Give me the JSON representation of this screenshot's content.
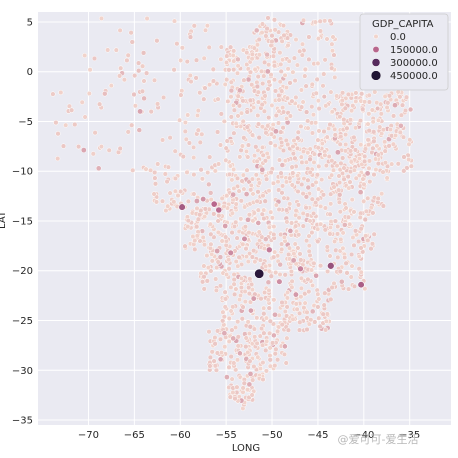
{
  "chart_data": {
    "type": "scatter",
    "title": "",
    "xlabel": "LONG",
    "ylabel": "LAT",
    "xlim": [
      -75.5,
      -30.5
    ],
    "ylim": [
      -35.5,
      6.0
    ],
    "xticks": [
      -70,
      -65,
      -60,
      -55,
      -50,
      -45,
      -40,
      -35
    ],
    "yticks": [
      5,
      0,
      -5,
      -10,
      -15,
      -20,
      -25,
      -30,
      -35
    ],
    "xtick_labels": [
      "−70",
      "−65",
      "−60",
      "−55",
      "−50",
      "−45",
      "−40",
      "−35"
    ],
    "ytick_labels": [
      "5",
      "0",
      "−5",
      "−10",
      "−15",
      "−20",
      "−25",
      "−30",
      "−35"
    ],
    "grid": true,
    "background_color": "#eaeaf2",
    "legend": {
      "title": "GDP_CAPITA",
      "placement": "top-right",
      "entries": [
        {
          "label": "0.0",
          "value": 0,
          "color": "#f2d4cc"
        },
        {
          "label": "150000.0",
          "value": 150000,
          "color": "#b8668c"
        },
        {
          "label": "300000.0",
          "value": 300000,
          "color": "#552a5c"
        },
        {
          "label": "450000.0",
          "value": 450000,
          "color": "#1f1433"
        }
      ]
    },
    "points": [
      [
        -51.4,
        -20.3,
        420000
      ],
      [
        -59.8,
        -13.6,
        180000
      ],
      [
        -56.3,
        -13.3,
        150000
      ],
      [
        -55.8,
        -13.9,
        140000
      ],
      [
        -43.6,
        -19.5,
        200000
      ],
      [
        -40.3,
        -21.4,
        170000
      ],
      [
        -50.3,
        -17.9,
        120000
      ],
      [
        -54.5,
        -18.2,
        100000
      ],
      [
        -46.9,
        -19.8,
        110000
      ],
      [
        -53.0,
        -16.8,
        90000
      ],
      [
        -49.2,
        -21.1,
        95000
      ],
      [
        -57.5,
        -12.8,
        85000
      ],
      [
        -47.4,
        -22.4,
        80000
      ],
      [
        -52.3,
        -24.0,
        70000
      ],
      [
        -48.6,
        -27.6,
        60000
      ],
      [
        -34.9,
        -3.8,
        40000
      ],
      [
        -38.5,
        -3.7,
        30000
      ],
      [
        -44.3,
        -2.5,
        25000
      ],
      [
        -55.6,
        -28.9,
        60000
      ],
      [
        -53.5,
        -28.3,
        55000
      ],
      [
        -52.0,
        -22.8,
        75000
      ],
      [
        -45.2,
        -20.5,
        65000
      ],
      [
        -49.8,
        -26.5,
        50000
      ],
      [
        -55.1,
        -15.5,
        70000
      ],
      [
        -51.5,
        -15.2,
        60000
      ],
      [
        -48.0,
        -16.0,
        65000
      ]
    ]
  },
  "watermark": "@爱可可-爱生活"
}
